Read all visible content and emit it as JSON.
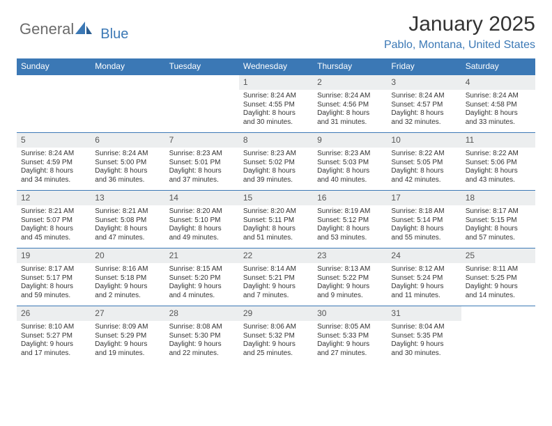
{
  "brand": {
    "part1": "General",
    "part2": "Blue",
    "color1": "#6b6b6b",
    "color2": "#3b78b5"
  },
  "title": "January 2025",
  "location": "Pablo, Montana, United States",
  "colors": {
    "header_bg": "#3b78b5",
    "header_fg": "#ffffff",
    "daynum_bg": "#eceeef",
    "border": "#3b78b5",
    "text": "#333333"
  },
  "day_headers": [
    "Sunday",
    "Monday",
    "Tuesday",
    "Wednesday",
    "Thursday",
    "Friday",
    "Saturday"
  ],
  "weeks": [
    [
      null,
      null,
      null,
      {
        "n": "1",
        "sunrise": "8:24 AM",
        "sunset": "4:55 PM",
        "dl": "8 hours and 30 minutes."
      },
      {
        "n": "2",
        "sunrise": "8:24 AM",
        "sunset": "4:56 PM",
        "dl": "8 hours and 31 minutes."
      },
      {
        "n": "3",
        "sunrise": "8:24 AM",
        "sunset": "4:57 PM",
        "dl": "8 hours and 32 minutes."
      },
      {
        "n": "4",
        "sunrise": "8:24 AM",
        "sunset": "4:58 PM",
        "dl": "8 hours and 33 minutes."
      }
    ],
    [
      {
        "n": "5",
        "sunrise": "8:24 AM",
        "sunset": "4:59 PM",
        "dl": "8 hours and 34 minutes."
      },
      {
        "n": "6",
        "sunrise": "8:24 AM",
        "sunset": "5:00 PM",
        "dl": "8 hours and 36 minutes."
      },
      {
        "n": "7",
        "sunrise": "8:23 AM",
        "sunset": "5:01 PM",
        "dl": "8 hours and 37 minutes."
      },
      {
        "n": "8",
        "sunrise": "8:23 AM",
        "sunset": "5:02 PM",
        "dl": "8 hours and 39 minutes."
      },
      {
        "n": "9",
        "sunrise": "8:23 AM",
        "sunset": "5:03 PM",
        "dl": "8 hours and 40 minutes."
      },
      {
        "n": "10",
        "sunrise": "8:22 AM",
        "sunset": "5:05 PM",
        "dl": "8 hours and 42 minutes."
      },
      {
        "n": "11",
        "sunrise": "8:22 AM",
        "sunset": "5:06 PM",
        "dl": "8 hours and 43 minutes."
      }
    ],
    [
      {
        "n": "12",
        "sunrise": "8:21 AM",
        "sunset": "5:07 PM",
        "dl": "8 hours and 45 minutes."
      },
      {
        "n": "13",
        "sunrise": "8:21 AM",
        "sunset": "5:08 PM",
        "dl": "8 hours and 47 minutes."
      },
      {
        "n": "14",
        "sunrise": "8:20 AM",
        "sunset": "5:10 PM",
        "dl": "8 hours and 49 minutes."
      },
      {
        "n": "15",
        "sunrise": "8:20 AM",
        "sunset": "5:11 PM",
        "dl": "8 hours and 51 minutes."
      },
      {
        "n": "16",
        "sunrise": "8:19 AM",
        "sunset": "5:12 PM",
        "dl": "8 hours and 53 minutes."
      },
      {
        "n": "17",
        "sunrise": "8:18 AM",
        "sunset": "5:14 PM",
        "dl": "8 hours and 55 minutes."
      },
      {
        "n": "18",
        "sunrise": "8:17 AM",
        "sunset": "5:15 PM",
        "dl": "8 hours and 57 minutes."
      }
    ],
    [
      {
        "n": "19",
        "sunrise": "8:17 AM",
        "sunset": "5:17 PM",
        "dl": "8 hours and 59 minutes."
      },
      {
        "n": "20",
        "sunrise": "8:16 AM",
        "sunset": "5:18 PM",
        "dl": "9 hours and 2 minutes."
      },
      {
        "n": "21",
        "sunrise": "8:15 AM",
        "sunset": "5:20 PM",
        "dl": "9 hours and 4 minutes."
      },
      {
        "n": "22",
        "sunrise": "8:14 AM",
        "sunset": "5:21 PM",
        "dl": "9 hours and 7 minutes."
      },
      {
        "n": "23",
        "sunrise": "8:13 AM",
        "sunset": "5:22 PM",
        "dl": "9 hours and 9 minutes."
      },
      {
        "n": "24",
        "sunrise": "8:12 AM",
        "sunset": "5:24 PM",
        "dl": "9 hours and 11 minutes."
      },
      {
        "n": "25",
        "sunrise": "8:11 AM",
        "sunset": "5:25 PM",
        "dl": "9 hours and 14 minutes."
      }
    ],
    [
      {
        "n": "26",
        "sunrise": "8:10 AM",
        "sunset": "5:27 PM",
        "dl": "9 hours and 17 minutes."
      },
      {
        "n": "27",
        "sunrise": "8:09 AM",
        "sunset": "5:29 PM",
        "dl": "9 hours and 19 minutes."
      },
      {
        "n": "28",
        "sunrise": "8:08 AM",
        "sunset": "5:30 PM",
        "dl": "9 hours and 22 minutes."
      },
      {
        "n": "29",
        "sunrise": "8:06 AM",
        "sunset": "5:32 PM",
        "dl": "9 hours and 25 minutes."
      },
      {
        "n": "30",
        "sunrise": "8:05 AM",
        "sunset": "5:33 PM",
        "dl": "9 hours and 27 minutes."
      },
      {
        "n": "31",
        "sunrise": "8:04 AM",
        "sunset": "5:35 PM",
        "dl": "9 hours and 30 minutes."
      },
      null
    ]
  ],
  "labels": {
    "sunrise_prefix": "Sunrise: ",
    "sunset_prefix": "Sunset: ",
    "daylight_prefix": "Daylight: "
  }
}
